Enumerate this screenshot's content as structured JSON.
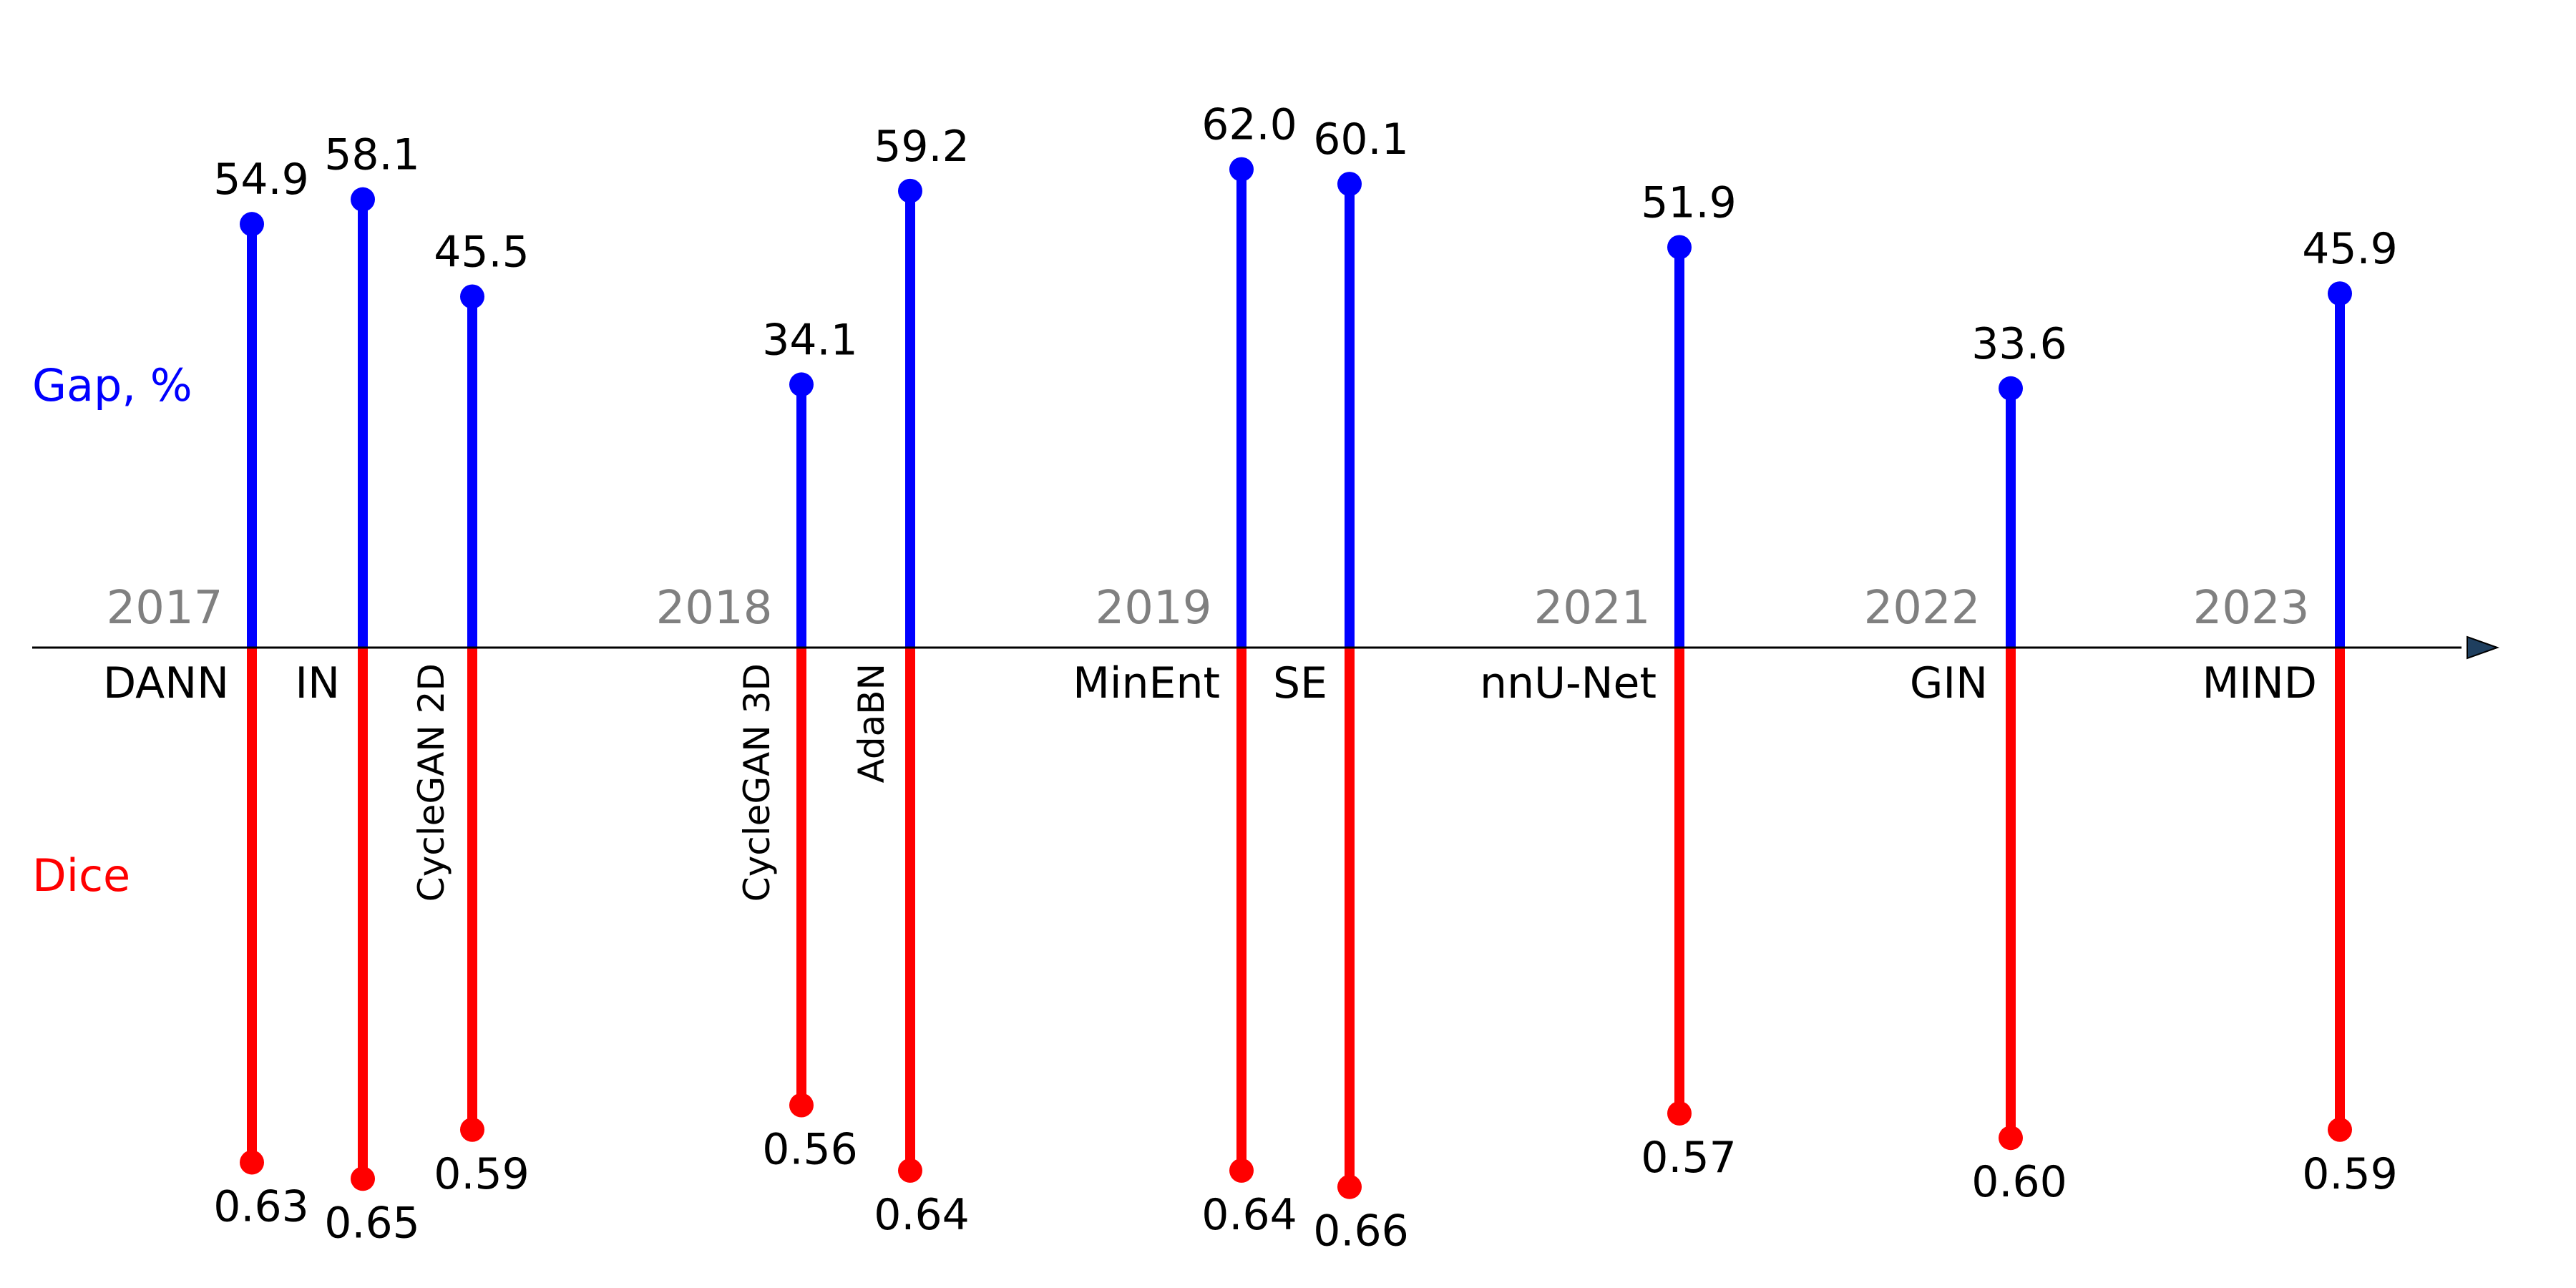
{
  "row_labels": {
    "gap": "Gap, %",
    "dice": "Dice"
  },
  "colors": {
    "gap": "#0000ff",
    "dice": "#ff0000",
    "year": "#808080",
    "axis": "#000000",
    "arrow": "#1f3f5f"
  },
  "chart_data": {
    "type": "timeline-stem",
    "title": "",
    "xlabel": "",
    "ylabel": "",
    "years": [
      "2017",
      "2018",
      "2019",
      "2021",
      "2022",
      "2023"
    ],
    "series": [
      {
        "name": "Gap, %",
        "direction": "up"
      },
      {
        "name": "Dice",
        "direction": "down"
      }
    ],
    "methods": [
      {
        "name": "DANN",
        "year": "2017",
        "gap": "54.9",
        "dice": "0.63",
        "label_rotated": false
      },
      {
        "name": "IN",
        "year": "2017",
        "gap": "58.1",
        "dice": "0.65",
        "label_rotated": false
      },
      {
        "name": "CycleGAN 2D",
        "year": "2017",
        "gap": "45.5",
        "dice": "0.59",
        "label_rotated": true
      },
      {
        "name": "CycleGAN 3D",
        "year": "2018",
        "gap": "34.1",
        "dice": "0.56",
        "label_rotated": true
      },
      {
        "name": "AdaBN",
        "year": "2018",
        "gap": "59.2",
        "dice": "0.64",
        "label_rotated": true
      },
      {
        "name": "MinEnt",
        "year": "2019",
        "gap": "62.0",
        "dice": "0.64",
        "label_rotated": false
      },
      {
        "name": "SE",
        "year": "2019",
        "gap": "60.1",
        "dice": "0.66",
        "label_rotated": false
      },
      {
        "name": "nnU-Net",
        "year": "2021",
        "gap": "51.9",
        "dice": "0.57",
        "label_rotated": false
      },
      {
        "name": "GIN",
        "year": "2022",
        "gap": "33.6",
        "dice": "0.60",
        "label_rotated": false
      },
      {
        "name": "MIND",
        "year": "2023",
        "gap": "45.9",
        "dice": "0.59",
        "label_rotated": false
      }
    ]
  }
}
